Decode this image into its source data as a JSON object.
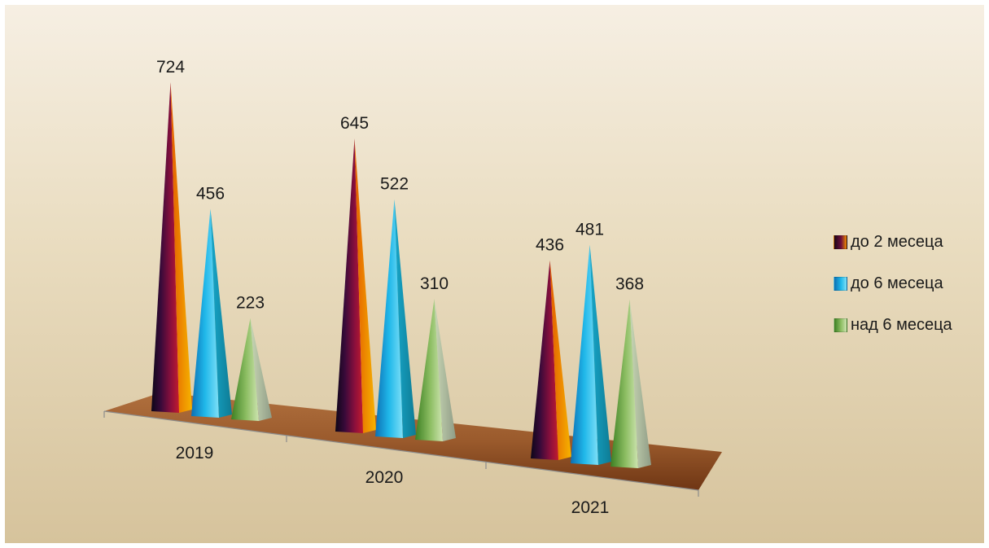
{
  "chart_data": {
    "type": "bar",
    "categories": [
      "2019",
      "2020",
      "2021"
    ],
    "series": [
      {
        "name": "до 2 месеца",
        "values": [
          724,
          645,
          436
        ],
        "color": "#6b0d3a"
      },
      {
        "name": "до 6 месеца",
        "values": [
          456,
          522,
          481
        ],
        "color": "#1fb7e8"
      },
      {
        "name": "над 6 месеца",
        "values": [
          223,
          310,
          368
        ],
        "color": "#8fb86a"
      }
    ],
    "title": "",
    "xlabel": "",
    "ylabel": "",
    "legend_position": "right",
    "grid": false,
    "style": "3d-pyramid"
  }
}
